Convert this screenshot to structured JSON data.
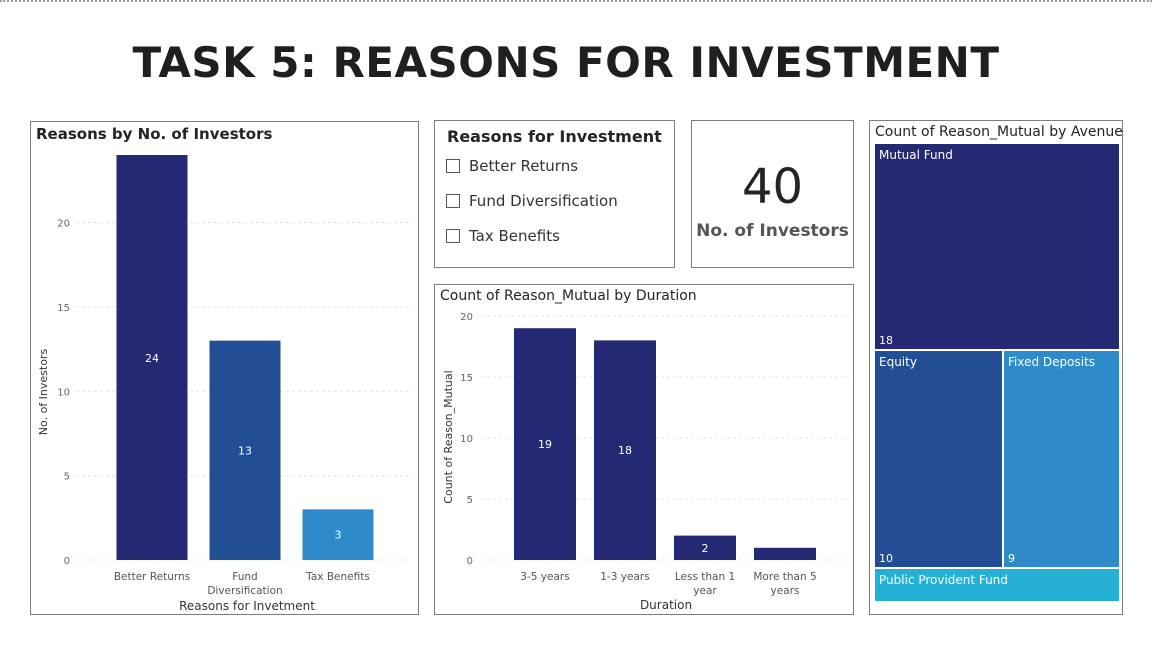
{
  "page": {
    "title": "TASK 5: REASONS FOR INVESTMENT"
  },
  "chart_reasons": {
    "title": "Reasons by No. of Investors",
    "chart_data": {
      "type": "bar",
      "title": "Reasons by No. of Investors",
      "xlabel": "Reasons for Invetment",
      "ylabel": "No. of Investors",
      "categories": [
        "Better Returns",
        "Fund Diversification",
        "Tax Benefits"
      ],
      "category_lines": [
        [
          "Better Returns"
        ],
        [
          "Fund",
          "Diversification"
        ],
        [
          "Tax Benefits"
        ]
      ],
      "values": [
        24,
        13,
        3
      ],
      "colors": [
        "#232a73",
        "#224e95",
        "#2f8ac9"
      ],
      "ylim": [
        0,
        24
      ],
      "yticks": [
        0,
        5,
        10,
        15,
        20
      ],
      "grid": true
    }
  },
  "slicer": {
    "title": "Reasons for Investment",
    "items": [
      {
        "label": "Better Returns",
        "checked": false
      },
      {
        "label": "Fund Diversification",
        "checked": false
      },
      {
        "label": "Tax Benefits",
        "checked": false
      }
    ]
  },
  "card": {
    "value": "40",
    "label": "No. of Investors"
  },
  "chart_duration": {
    "title": "Count of Reason_Mutual by Duration",
    "chart_data": {
      "type": "bar",
      "title": "Count of Reason_Mutual by Duration",
      "xlabel": "Duration",
      "ylabel": "Count of Reason_Mutual",
      "categories": [
        "3-5 years",
        "1-3 years",
        "Less than 1 year",
        "More than 5 years"
      ],
      "category_lines": [
        [
          "3-5 years"
        ],
        [
          "1-3 years"
        ],
        [
          "Less than 1",
          "year"
        ],
        [
          "More than 5",
          "years"
        ]
      ],
      "values": [
        19,
        18,
        2,
        1
      ],
      "data_labels": [
        "19",
        "18",
        "2",
        ""
      ],
      "color": "#232a73",
      "ylim": [
        0,
        20
      ],
      "yticks": [
        0,
        5,
        10,
        15,
        20
      ],
      "grid": true
    }
  },
  "treemap": {
    "title": "Count of Reason_Mutual by Avenue",
    "chart_data": {
      "type": "treemap",
      "title": "Count of Reason_Mutual by Avenue",
      "items": [
        {
          "name": "Mutual Fund",
          "value": 18,
          "value_label": "18",
          "color": "#232a73"
        },
        {
          "name": "Equity",
          "value": 10,
          "value_label": "10",
          "color": "#224e95"
        },
        {
          "name": "Fixed Deposits",
          "value": 9,
          "value_label": "9",
          "color": "#2f8ac9"
        },
        {
          "name": "Public Provident Fund",
          "value": 3,
          "value_label": "",
          "color": "#24b1d5"
        }
      ]
    }
  }
}
